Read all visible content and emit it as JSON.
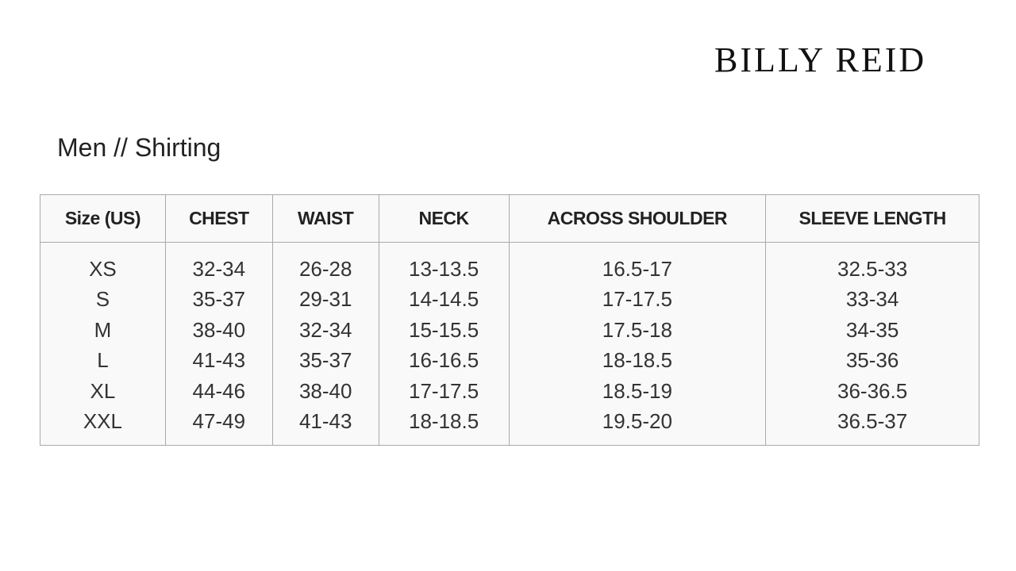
{
  "brand": "BILLY REID",
  "title": "Men // Shirting",
  "table": {
    "headers": [
      "Size (US)",
      "CHEST",
      "WAIST",
      "NECK",
      "ACROSS SHOULDER",
      "SLEEVE LENGTH"
    ],
    "rows": [
      [
        "XS",
        "32-34",
        "26-28",
        "13-13.5",
        "16.5-17",
        "32.5-33"
      ],
      [
        "S",
        "35-37",
        "29-31",
        "14-14.5",
        "17-17.5",
        "33-34"
      ],
      [
        "M",
        "38-40",
        "32-34",
        "15-15.5",
        "17.5-18",
        "34-35"
      ],
      [
        "L",
        "41-43",
        "35-37",
        "16-16.5",
        "18-18.5",
        "35-36"
      ],
      [
        "XL",
        "44-46",
        "38-40",
        "17-17.5",
        "18.5-19",
        "36-36.5"
      ],
      [
        "XXL",
        "47-49",
        "41-43",
        "18-18.5",
        "19.5-20",
        "36.5-37"
      ]
    ]
  }
}
